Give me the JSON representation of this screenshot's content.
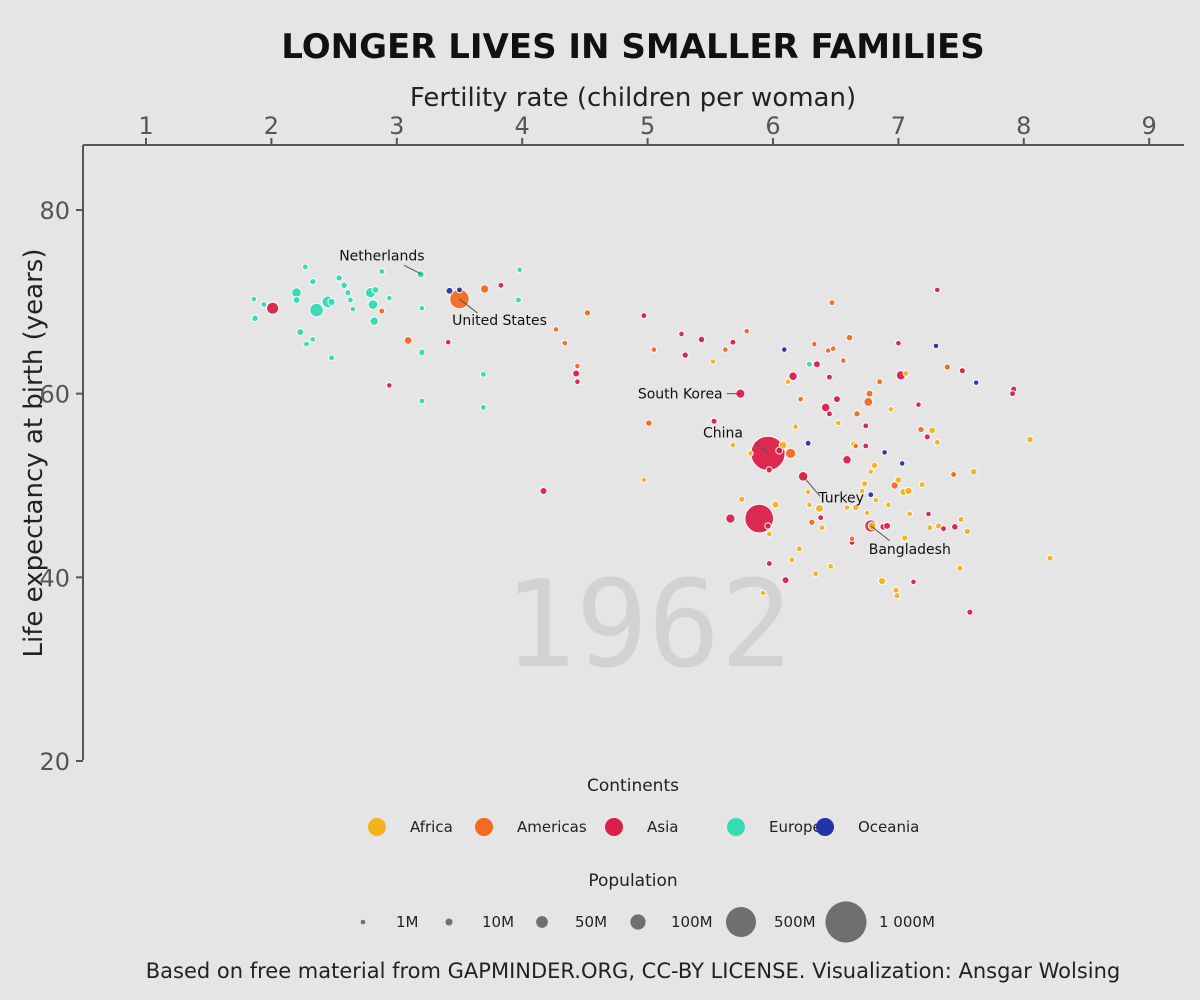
{
  "chart_data": {
    "type": "scatter",
    "title": "LONGER LIVES IN SMALLER FAMILIES",
    "xlabel": "Fertility rate (children per woman)",
    "ylabel": "Life expectancy at birth (years)",
    "year": "1962",
    "xlim": [
      0.5,
      9.3
    ],
    "ylim": [
      20,
      87
    ],
    "x_ticks": [
      1,
      2,
      3,
      4,
      5,
      6,
      7,
      8,
      9
    ],
    "y_ticks": [
      20,
      40,
      60,
      80
    ],
    "continents": [
      {
        "name": "Africa",
        "color": "#f6b21c"
      },
      {
        "name": "Americas",
        "color": "#f36a22"
      },
      {
        "name": "Asia",
        "color": "#dc1f4a"
      },
      {
        "name": "Europe",
        "color": "#35dbb3"
      },
      {
        "name": "Oceania",
        "color": "#2433a8"
      }
    ],
    "continents_legend_title": "Continents",
    "population_legend_title": "Population",
    "population_legend": [
      {
        "label": "1M",
        "pop": 1
      },
      {
        "label": "10M",
        "pop": 10
      },
      {
        "label": "50M",
        "pop": 50
      },
      {
        "label": "100M",
        "pop": 100
      },
      {
        "label": "500M",
        "pop": 500
      },
      {
        "label": "1 000M",
        "pop": 1000
      }
    ],
    "annotations": [
      {
        "label": "Netherlands",
        "x": 3.2,
        "y": 73.0
      },
      {
        "label": "United States",
        "x": 3.5,
        "y": 70.3
      },
      {
        "label": "South Korea",
        "x": 5.75,
        "y": 60.0
      },
      {
        "label": "China",
        "x": 5.96,
        "y": 53.5
      },
      {
        "label": "Turkey",
        "x": 6.24,
        "y": 51.0
      },
      {
        "label": "Bangladesh",
        "x": 6.78,
        "y": 45.6
      }
    ],
    "points": [
      {
        "x": 1.86,
        "y": 70.3,
        "pop": 4,
        "c": "Europe"
      },
      {
        "x": 1.87,
        "y": 68.2,
        "pop": 8,
        "c": "Europe"
      },
      {
        "x": 1.94,
        "y": 69.7,
        "pop": 5,
        "c": "Europe"
      },
      {
        "x": 2.01,
        "y": 69.3,
        "pop": 55,
        "c": "Asia"
      },
      {
        "x": 2.2,
        "y": 71.0,
        "pop": 30,
        "c": "Europe"
      },
      {
        "x": 2.2,
        "y": 70.2,
        "pop": 10,
        "c": "Europe"
      },
      {
        "x": 2.23,
        "y": 66.7,
        "pop": 10,
        "c": "Europe"
      },
      {
        "x": 2.27,
        "y": 73.8,
        "pop": 5,
        "c": "Europe"
      },
      {
        "x": 2.28,
        "y": 65.4,
        "pop": 5,
        "c": "Europe"
      },
      {
        "x": 2.33,
        "y": 72.2,
        "pop": 7,
        "c": "Europe"
      },
      {
        "x": 2.33,
        "y": 65.9,
        "pop": 4,
        "c": "Europe"
      },
      {
        "x": 2.36,
        "y": 69.1,
        "pop": 75,
        "c": "Europe"
      },
      {
        "x": 2.45,
        "y": 70.0,
        "pop": 50,
        "c": "Europe"
      },
      {
        "x": 2.48,
        "y": 70.0,
        "pop": 12,
        "c": "Europe"
      },
      {
        "x": 2.48,
        "y": 63.9,
        "pop": 5,
        "c": "Europe"
      },
      {
        "x": 2.54,
        "y": 72.6,
        "pop": 7,
        "c": "Europe"
      },
      {
        "x": 2.58,
        "y": 71.8,
        "pop": 8,
        "c": "Europe"
      },
      {
        "x": 2.61,
        "y": 71.0,
        "pop": 6,
        "c": "Europe"
      },
      {
        "x": 2.63,
        "y": 70.2,
        "pop": 5,
        "c": "Europe"
      },
      {
        "x": 2.65,
        "y": 69.2,
        "pop": 4,
        "c": "Europe"
      },
      {
        "x": 2.79,
        "y": 71.0,
        "pop": 35,
        "c": "Europe"
      },
      {
        "x": 2.81,
        "y": 69.7,
        "pop": 30,
        "c": "Europe"
      },
      {
        "x": 2.83,
        "y": 71.3,
        "pop": 10,
        "c": "Europe"
      },
      {
        "x": 2.82,
        "y": 67.9,
        "pop": 20,
        "c": "Europe"
      },
      {
        "x": 2.88,
        "y": 73.3,
        "pop": 5,
        "c": "Europe"
      },
      {
        "x": 2.88,
        "y": 69.0,
        "pop": 5,
        "c": "Americas"
      },
      {
        "x": 2.94,
        "y": 70.4,
        "pop": 4,
        "c": "Europe"
      },
      {
        "x": 2.94,
        "y": 60.9,
        "pop": 4,
        "c": "Asia"
      },
      {
        "x": 3.09,
        "y": 65.8,
        "pop": 15,
        "c": "Americas"
      },
      {
        "x": 3.19,
        "y": 73.0,
        "pop": 11,
        "c": "Europe"
      },
      {
        "x": 3.2,
        "y": 69.3,
        "pop": 4,
        "c": "Europe"
      },
      {
        "x": 3.2,
        "y": 64.5,
        "pop": 8,
        "c": "Europe"
      },
      {
        "x": 3.2,
        "y": 59.2,
        "pop": 5,
        "c": "Europe"
      },
      {
        "x": 3.42,
        "y": 71.2,
        "pop": 10,
        "c": "Oceania"
      },
      {
        "x": 3.41,
        "y": 65.6,
        "pop": 4,
        "c": "Asia"
      },
      {
        "x": 3.5,
        "y": 70.3,
        "pop": 186,
        "c": "Americas"
      },
      {
        "x": 3.5,
        "y": 71.3,
        "pop": 5,
        "c": "Oceania"
      },
      {
        "x": 3.69,
        "y": 62.1,
        "pop": 5,
        "c": "Europe"
      },
      {
        "x": 3.69,
        "y": 58.5,
        "pop": 5,
        "c": "Europe"
      },
      {
        "x": 3.7,
        "y": 71.4,
        "pop": 19,
        "c": "Americas"
      },
      {
        "x": 3.83,
        "y": 71.8,
        "pop": 5,
        "c": "Asia"
      },
      {
        "x": 3.97,
        "y": 70.2,
        "pop": 5,
        "c": "Europe"
      },
      {
        "x": 3.98,
        "y": 73.5,
        "pop": 4,
        "c": "Europe"
      },
      {
        "x": 4.17,
        "y": 49.4,
        "pop": 10,
        "c": "Asia"
      },
      {
        "x": 4.27,
        "y": 67.0,
        "pop": 4,
        "c": "Americas"
      },
      {
        "x": 4.34,
        "y": 65.5,
        "pop": 4,
        "c": "Americas"
      },
      {
        "x": 4.43,
        "y": 62.2,
        "pop": 10,
        "c": "Asia"
      },
      {
        "x": 4.44,
        "y": 63.0,
        "pop": 4,
        "c": "Americas"
      },
      {
        "x": 4.44,
        "y": 61.3,
        "pop": 4,
        "c": "Asia"
      },
      {
        "x": 4.52,
        "y": 68.8,
        "pop": 7,
        "c": "Americas"
      },
      {
        "x": 4.97,
        "y": 68.5,
        "pop": 5,
        "c": "Asia"
      },
      {
        "x": 4.97,
        "y": 50.6,
        "pop": 4,
        "c": "Africa"
      },
      {
        "x": 5.01,
        "y": 56.8,
        "pop": 8,
        "c": "Americas"
      },
      {
        "x": 5.05,
        "y": 64.8,
        "pop": 4,
        "c": "Americas"
      },
      {
        "x": 5.27,
        "y": 66.5,
        "pop": 4,
        "c": "Asia"
      },
      {
        "x": 5.3,
        "y": 64.2,
        "pop": 7,
        "c": "Asia"
      },
      {
        "x": 5.43,
        "y": 65.9,
        "pop": 8,
        "c": "Asia"
      },
      {
        "x": 5.52,
        "y": 63.5,
        "pop": 4,
        "c": "Africa"
      },
      {
        "x": 5.53,
        "y": 57.0,
        "pop": 6,
        "c": "Asia"
      },
      {
        "x": 5.62,
        "y": 64.8,
        "pop": 4,
        "c": "Americas"
      },
      {
        "x": 5.66,
        "y": 46.4,
        "pop": 26,
        "c": "Asia"
      },
      {
        "x": 5.68,
        "y": 65.6,
        "pop": 5,
        "c": "Asia"
      },
      {
        "x": 5.68,
        "y": 54.4,
        "pop": 4,
        "c": "Africa"
      },
      {
        "x": 5.74,
        "y": 60.0,
        "pop": 25,
        "c": "Asia"
      },
      {
        "x": 5.75,
        "y": 48.5,
        "pop": 7,
        "c": "Africa"
      },
      {
        "x": 5.79,
        "y": 66.8,
        "pop": 4,
        "c": "Americas"
      },
      {
        "x": 5.82,
        "y": 53.5,
        "pop": 4,
        "c": "Africa"
      },
      {
        "x": 5.89,
        "y": 46.4,
        "pop": 450,
        "c": "Asia"
      },
      {
        "x": 5.92,
        "y": 38.3,
        "pop": 4,
        "c": "Africa"
      },
      {
        "x": 5.96,
        "y": 53.5,
        "pop": 670,
        "c": "Asia"
      },
      {
        "x": 5.96,
        "y": 45.6,
        "pop": 7,
        "c": "Asia"
      },
      {
        "x": 5.97,
        "y": 51.7,
        "pop": 6,
        "c": "Asia"
      },
      {
        "x": 5.97,
        "y": 44.7,
        "pop": 4,
        "c": "Africa"
      },
      {
        "x": 5.97,
        "y": 41.5,
        "pop": 5,
        "c": "Asia"
      },
      {
        "x": 6.02,
        "y": 47.9,
        "pop": 10,
        "c": "Africa"
      },
      {
        "x": 6.05,
        "y": 53.8,
        "pop": 10,
        "c": "Asia"
      },
      {
        "x": 6.08,
        "y": 54.4,
        "pop": 15,
        "c": "Africa"
      },
      {
        "x": 6.09,
        "y": 64.8,
        "pop": 4,
        "c": "Oceania"
      },
      {
        "x": 6.1,
        "y": 39.7,
        "pop": 10,
        "c": "Asia"
      },
      {
        "x": 6.12,
        "y": 61.3,
        "pop": 4,
        "c": "Africa"
      },
      {
        "x": 6.14,
        "y": 53.5,
        "pop": 35,
        "c": "Americas"
      },
      {
        "x": 6.15,
        "y": 41.9,
        "pop": 5,
        "c": "Africa"
      },
      {
        "x": 6.16,
        "y": 61.9,
        "pop": 20,
        "c": "Asia"
      },
      {
        "x": 6.18,
        "y": 56.4,
        "pop": 4,
        "c": "Africa"
      },
      {
        "x": 6.21,
        "y": 43.1,
        "pop": 5,
        "c": "Africa"
      },
      {
        "x": 6.22,
        "y": 59.4,
        "pop": 4,
        "c": "Americas"
      },
      {
        "x": 6.24,
        "y": 51.0,
        "pop": 28,
        "c": "Asia"
      },
      {
        "x": 6.28,
        "y": 49.3,
        "pop": 4,
        "c": "Africa"
      },
      {
        "x": 6.29,
        "y": 47.9,
        "pop": 4,
        "c": "Africa"
      },
      {
        "x": 6.28,
        "y": 54.6,
        "pop": 5,
        "c": "Oceania"
      },
      {
        "x": 6.29,
        "y": 63.2,
        "pop": 5,
        "c": "Europe"
      },
      {
        "x": 6.31,
        "y": 46.0,
        "pop": 7,
        "c": "Americas"
      },
      {
        "x": 6.33,
        "y": 65.4,
        "pop": 4,
        "c": "Americas"
      },
      {
        "x": 6.34,
        "y": 40.4,
        "pop": 5,
        "c": "Africa"
      },
      {
        "x": 6.35,
        "y": 63.2,
        "pop": 10,
        "c": "Asia"
      },
      {
        "x": 6.37,
        "y": 47.5,
        "pop": 15,
        "c": "Africa"
      },
      {
        "x": 6.38,
        "y": 46.5,
        "pop": 5,
        "c": "Asia"
      },
      {
        "x": 6.39,
        "y": 45.4,
        "pop": 5,
        "c": "Africa"
      },
      {
        "x": 6.42,
        "y": 58.5,
        "pop": 20,
        "c": "Asia"
      },
      {
        "x": 6.44,
        "y": 64.7,
        "pop": 4,
        "c": "Americas"
      },
      {
        "x": 6.45,
        "y": 61.8,
        "pop": 5,
        "c": "Asia"
      },
      {
        "x": 6.45,
        "y": 57.8,
        "pop": 5,
        "c": "Asia"
      },
      {
        "x": 6.46,
        "y": 41.2,
        "pop": 5,
        "c": "Africa"
      },
      {
        "x": 6.47,
        "y": 69.9,
        "pop": 5,
        "c": "Americas"
      },
      {
        "x": 6.48,
        "y": 64.9,
        "pop": 4,
        "c": "Americas"
      },
      {
        "x": 6.51,
        "y": 59.4,
        "pop": 10,
        "c": "Asia"
      },
      {
        "x": 6.52,
        "y": 56.8,
        "pop": 4,
        "c": "Africa"
      },
      {
        "x": 6.56,
        "y": 63.6,
        "pop": 4,
        "c": "Americas"
      },
      {
        "x": 6.59,
        "y": 52.8,
        "pop": 20,
        "c": "Asia"
      },
      {
        "x": 6.59,
        "y": 47.6,
        "pop": 4,
        "c": "Africa"
      },
      {
        "x": 6.61,
        "y": 66.1,
        "pop": 8,
        "c": "Americas"
      },
      {
        "x": 6.63,
        "y": 44.2,
        "pop": 4,
        "c": "Americas"
      },
      {
        "x": 6.63,
        "y": 43.8,
        "pop": 5,
        "c": "Asia"
      },
      {
        "x": 6.64,
        "y": 54.5,
        "pop": 4,
        "c": "Africa"
      },
      {
        "x": 6.66,
        "y": 47.6,
        "pop": 8,
        "c": "Africa"
      },
      {
        "x": 6.66,
        "y": 54.3,
        "pop": 4,
        "c": "Americas"
      },
      {
        "x": 6.67,
        "y": 57.8,
        "pop": 7,
        "c": "Americas"
      },
      {
        "x": 6.71,
        "y": 49.4,
        "pop": 4,
        "c": "Africa"
      },
      {
        "x": 6.73,
        "y": 50.2,
        "pop": 6,
        "c": "Africa"
      },
      {
        "x": 6.74,
        "y": 56.5,
        "pop": 5,
        "c": "Asia"
      },
      {
        "x": 6.75,
        "y": 47.0,
        "pop": 4,
        "c": "Africa"
      },
      {
        "x": 6.74,
        "y": 54.3,
        "pop": 5,
        "c": "Asia"
      },
      {
        "x": 6.76,
        "y": 59.1,
        "pop": 22,
        "c": "Americas"
      },
      {
        "x": 6.77,
        "y": 60.0,
        "pop": 10,
        "c": "Americas"
      },
      {
        "x": 6.78,
        "y": 51.5,
        "pop": 4,
        "c": "Africa"
      },
      {
        "x": 6.78,
        "y": 49.0,
        "pop": 5,
        "c": "Oceania"
      },
      {
        "x": 6.78,
        "y": 45.6,
        "pop": 55,
        "c": "Asia"
      },
      {
        "x": 6.79,
        "y": 45.6,
        "pop": 15,
        "c": "Africa"
      },
      {
        "x": 6.81,
        "y": 52.2,
        "pop": 7,
        "c": "Africa"
      },
      {
        "x": 6.82,
        "y": 48.4,
        "pop": 4,
        "c": "Africa"
      },
      {
        "x": 6.85,
        "y": 61.3,
        "pop": 5,
        "c": "Americas"
      },
      {
        "x": 6.87,
        "y": 39.6,
        "pop": 12,
        "c": "Africa"
      },
      {
        "x": 6.88,
        "y": 45.5,
        "pop": 10,
        "c": "Asia"
      },
      {
        "x": 6.89,
        "y": 53.6,
        "pop": 4,
        "c": "Oceania"
      },
      {
        "x": 6.91,
        "y": 45.6,
        "pop": 10,
        "c": "Asia"
      },
      {
        "x": 6.92,
        "y": 47.9,
        "pop": 4,
        "c": "Africa"
      },
      {
        "x": 6.94,
        "y": 58.3,
        "pop": 4,
        "c": "Africa"
      },
      {
        "x": 6.97,
        "y": 50.0,
        "pop": 12,
        "c": "Americas"
      },
      {
        "x": 6.98,
        "y": 38.6,
        "pop": 6,
        "c": "Africa"
      },
      {
        "x": 6.99,
        "y": 38.0,
        "pop": 6,
        "c": "Africa"
      },
      {
        "x": 7.0,
        "y": 65.5,
        "pop": 4,
        "c": "Asia"
      },
      {
        "x": 7.0,
        "y": 50.6,
        "pop": 8,
        "c": "Africa"
      },
      {
        "x": 7.02,
        "y": 62.0,
        "pop": 25,
        "c": "Asia"
      },
      {
        "x": 7.03,
        "y": 52.4,
        "pop": 4,
        "c": "Oceania"
      },
      {
        "x": 7.04,
        "y": 49.3,
        "pop": 12,
        "c": "Africa"
      },
      {
        "x": 7.05,
        "y": 44.3,
        "pop": 6,
        "c": "Africa"
      },
      {
        "x": 7.06,
        "y": 62.2,
        "pop": 5,
        "c": "Africa"
      },
      {
        "x": 7.08,
        "y": 49.4,
        "pop": 12,
        "c": "Africa"
      },
      {
        "x": 7.09,
        "y": 46.9,
        "pop": 4,
        "c": "Africa"
      },
      {
        "x": 7.12,
        "y": 39.5,
        "pop": 4,
        "c": "Asia"
      },
      {
        "x": 7.16,
        "y": 58.8,
        "pop": 4,
        "c": "Asia"
      },
      {
        "x": 7.18,
        "y": 56.1,
        "pop": 7,
        "c": "Americas"
      },
      {
        "x": 7.19,
        "y": 50.1,
        "pop": 5,
        "c": "Africa"
      },
      {
        "x": 7.23,
        "y": 55.3,
        "pop": 6,
        "c": "Asia"
      },
      {
        "x": 7.24,
        "y": 46.9,
        "pop": 4,
        "c": "Asia"
      },
      {
        "x": 7.25,
        "y": 45.4,
        "pop": 6,
        "c": "Africa"
      },
      {
        "x": 7.27,
        "y": 56.0,
        "pop": 8,
        "c": "Africa"
      },
      {
        "x": 7.3,
        "y": 65.2,
        "pop": 4,
        "c": "Oceania"
      },
      {
        "x": 7.31,
        "y": 71.3,
        "pop": 4,
        "c": "Asia"
      },
      {
        "x": 7.31,
        "y": 54.7,
        "pop": 5,
        "c": "Africa"
      },
      {
        "x": 7.32,
        "y": 45.6,
        "pop": 6,
        "c": "Africa"
      },
      {
        "x": 7.36,
        "y": 45.3,
        "pop": 5,
        "c": "Asia"
      },
      {
        "x": 7.39,
        "y": 62.9,
        "pop": 7,
        "c": "Americas"
      },
      {
        "x": 7.44,
        "y": 51.2,
        "pop": 5,
        "c": "Americas"
      },
      {
        "x": 7.45,
        "y": 45.5,
        "pop": 8,
        "c": "Asia"
      },
      {
        "x": 7.49,
        "y": 41.0,
        "pop": 6,
        "c": "Africa"
      },
      {
        "x": 7.5,
        "y": 46.3,
        "pop": 6,
        "c": "Africa"
      },
      {
        "x": 7.51,
        "y": 62.5,
        "pop": 6,
        "c": "Asia"
      },
      {
        "x": 7.55,
        "y": 45.0,
        "pop": 8,
        "c": "Africa"
      },
      {
        "x": 7.57,
        "y": 36.2,
        "pop": 6,
        "c": "Asia"
      },
      {
        "x": 7.6,
        "y": 51.5,
        "pop": 8,
        "c": "Africa"
      },
      {
        "x": 7.62,
        "y": 61.2,
        "pop": 4,
        "c": "Oceania"
      },
      {
        "x": 7.91,
        "y": 60.0,
        "pop": 5,
        "c": "Asia"
      },
      {
        "x": 7.92,
        "y": 60.5,
        "pop": 6,
        "c": "Asia"
      },
      {
        "x": 8.05,
        "y": 55.0,
        "pop": 8,
        "c": "Africa"
      },
      {
        "x": 8.21,
        "y": 42.1,
        "pop": 6,
        "c": "Africa"
      }
    ],
    "caption": "Based on free material from GAPMINDER.ORG, CC-BY LICENSE. Visualization: Ansgar Wolsing"
  }
}
